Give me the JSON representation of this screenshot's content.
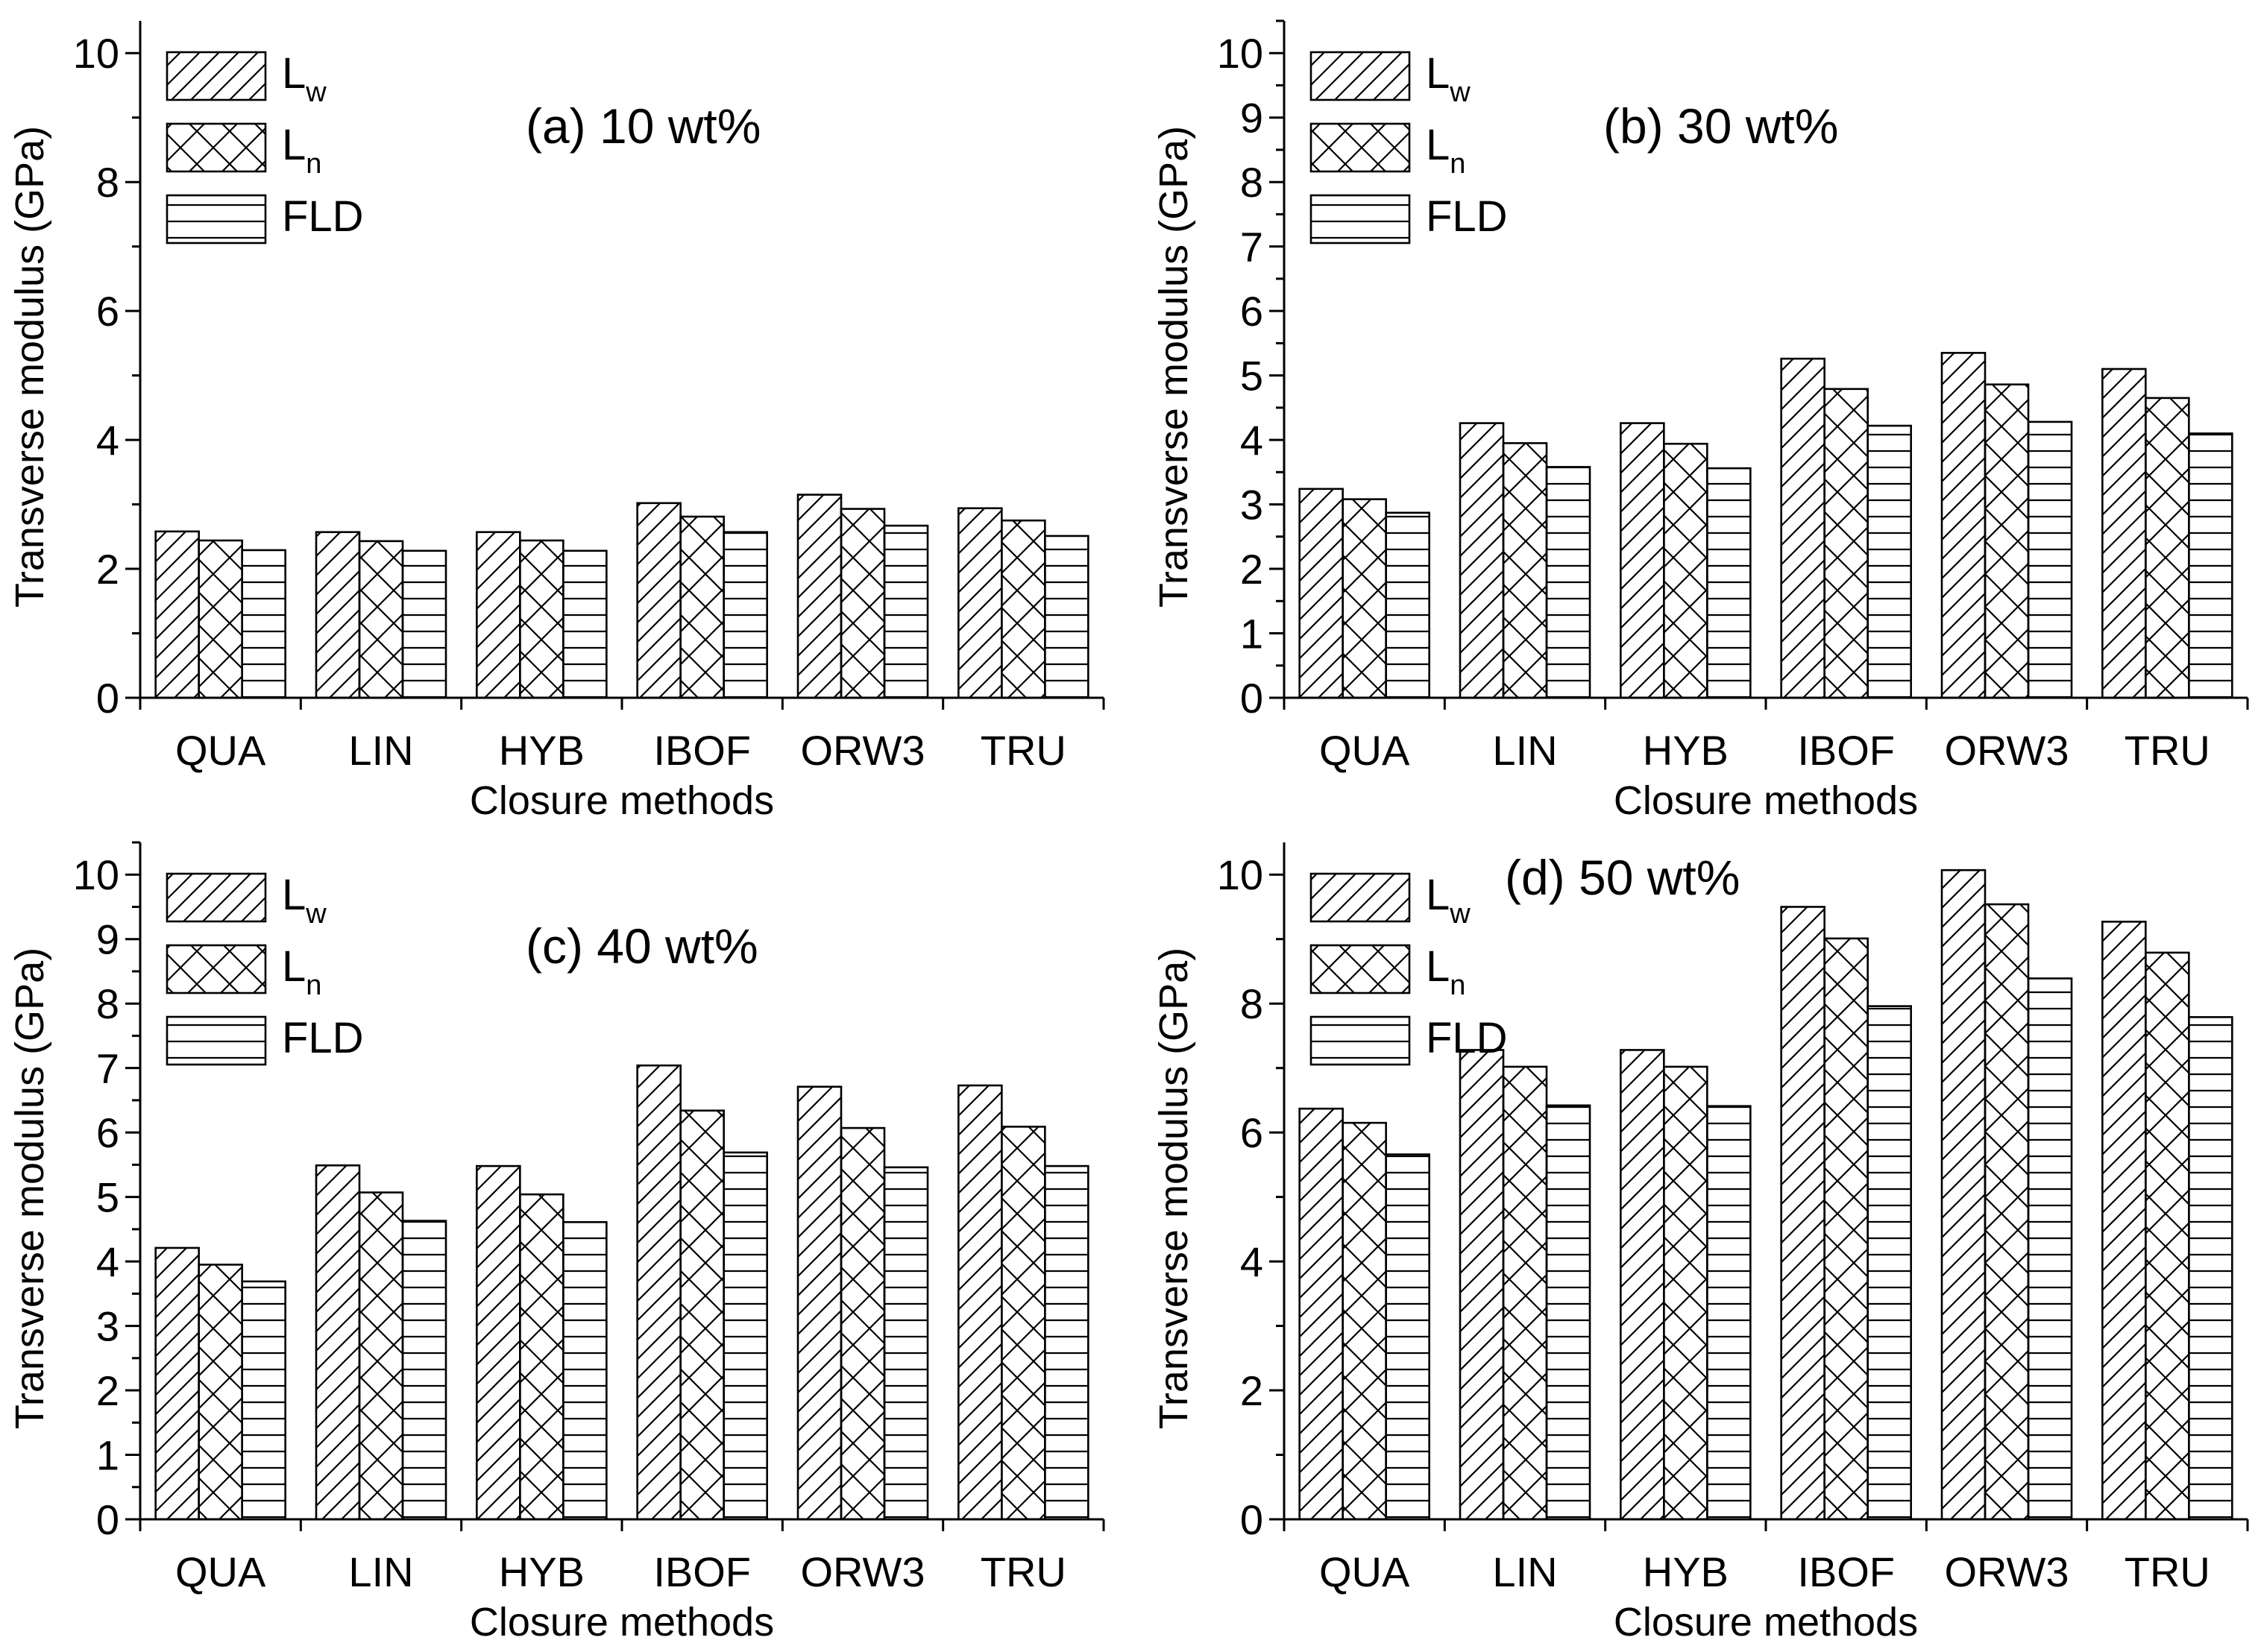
{
  "chart_data": [
    {
      "type": "bar",
      "panel": "(a)",
      "annotation": "(a) 10 wt%",
      "xlabel": "Closure methods",
      "ylabel": "Transverse modulus (GPa)",
      "ylim": [
        0,
        10.5
      ],
      "yticks": [
        0,
        2,
        4,
        6,
        8,
        10
      ],
      "categories": [
        "QUA",
        "LIN",
        "HYB",
        "IBOF",
        "ORW3",
        "TRU"
      ],
      "legend_position": "top-left",
      "series": [
        {
          "name": "Lw",
          "label_main": "L",
          "label_sub": "w",
          "pattern": "diagonal",
          "values": [
            2.58,
            2.57,
            2.57,
            3.02,
            3.15,
            2.94
          ]
        },
        {
          "name": "Ln",
          "label_main": "L",
          "label_sub": "n",
          "pattern": "crosshatch",
          "values": [
            2.44,
            2.43,
            2.44,
            2.81,
            2.93,
            2.75
          ]
        },
        {
          "name": "FLD",
          "label_main": "FLD",
          "label_sub": "",
          "pattern": "horizontal",
          "values": [
            2.29,
            2.28,
            2.28,
            2.57,
            2.67,
            2.51
          ]
        }
      ]
    },
    {
      "type": "bar",
      "panel": "(b)",
      "annotation": "(b) 30 wt%",
      "xlabel": "Closure methods",
      "ylabel": "Transverse modulus (GPa)",
      "ylim": [
        0,
        10.5
      ],
      "yticks": [
        0,
        1,
        2,
        3,
        4,
        5,
        6,
        7,
        8,
        9,
        10
      ],
      "categories": [
        "QUA",
        "LIN",
        "HYB",
        "IBOF",
        "ORW3",
        "TRU"
      ],
      "legend_position": "top-left",
      "series": [
        {
          "name": "Lw",
          "label_main": "L",
          "label_sub": "w",
          "pattern": "diagonal",
          "values": [
            3.24,
            4.26,
            4.26,
            5.26,
            5.35,
            5.1
          ]
        },
        {
          "name": "Ln",
          "label_main": "L",
          "label_sub": "n",
          "pattern": "crosshatch",
          "values": [
            3.08,
            3.95,
            3.94,
            4.79,
            4.86,
            4.65
          ]
        },
        {
          "name": "FLD",
          "label_main": "FLD",
          "label_sub": "",
          "pattern": "horizontal",
          "values": [
            2.87,
            3.58,
            3.56,
            4.22,
            4.28,
            4.1
          ]
        }
      ]
    },
    {
      "type": "bar",
      "panel": "(c)",
      "annotation": "(c) 40 wt%",
      "xlabel": "Closure methods",
      "ylabel": "Transverse modulus (GPa)",
      "ylim": [
        0,
        10.5
      ],
      "yticks": [
        0,
        1,
        2,
        3,
        4,
        5,
        6,
        7,
        8,
        9,
        10
      ],
      "categories": [
        "QUA",
        "LIN",
        "HYB",
        "IBOF",
        "ORW3",
        "TRU"
      ],
      "legend_position": "top-left",
      "series": [
        {
          "name": "Lw",
          "label_main": "L",
          "label_sub": "w",
          "pattern": "diagonal",
          "values": [
            4.21,
            5.49,
            5.48,
            7.04,
            6.71,
            6.73
          ]
        },
        {
          "name": "Ln",
          "label_main": "L",
          "label_sub": "n",
          "pattern": "crosshatch",
          "values": [
            3.95,
            5.07,
            5.04,
            6.34,
            6.07,
            6.09
          ]
        },
        {
          "name": "FLD",
          "label_main": "FLD",
          "label_sub": "",
          "pattern": "horizontal",
          "values": [
            3.69,
            4.63,
            4.61,
            5.69,
            5.46,
            5.48
          ]
        }
      ]
    },
    {
      "type": "bar",
      "panel": "(d)",
      "annotation": "(d) 50 wt%",
      "xlabel": "Closure methods",
      "ylabel": "Transverse modulus (GPa)",
      "ylim": [
        0,
        10.5
      ],
      "yticks": [
        0,
        2,
        4,
        6,
        8,
        10
      ],
      "categories": [
        "QUA",
        "LIN",
        "HYB",
        "IBOF",
        "ORW3",
        "TRU"
      ],
      "legend_position": "top-left",
      "series": [
        {
          "name": "Lw",
          "label_main": "L",
          "label_sub": "w",
          "pattern": "diagonal",
          "values": [
            6.37,
            7.28,
            7.28,
            9.5,
            10.07,
            9.27
          ]
        },
        {
          "name": "Ln",
          "label_main": "L",
          "label_sub": "n",
          "pattern": "crosshatch",
          "values": [
            6.15,
            7.02,
            7.02,
            9.01,
            9.54,
            8.79
          ]
        },
        {
          "name": "FLD",
          "label_main": "FLD",
          "label_sub": "",
          "pattern": "horizontal",
          "values": [
            5.66,
            6.42,
            6.41,
            7.96,
            8.39,
            7.79
          ]
        }
      ]
    }
  ]
}
